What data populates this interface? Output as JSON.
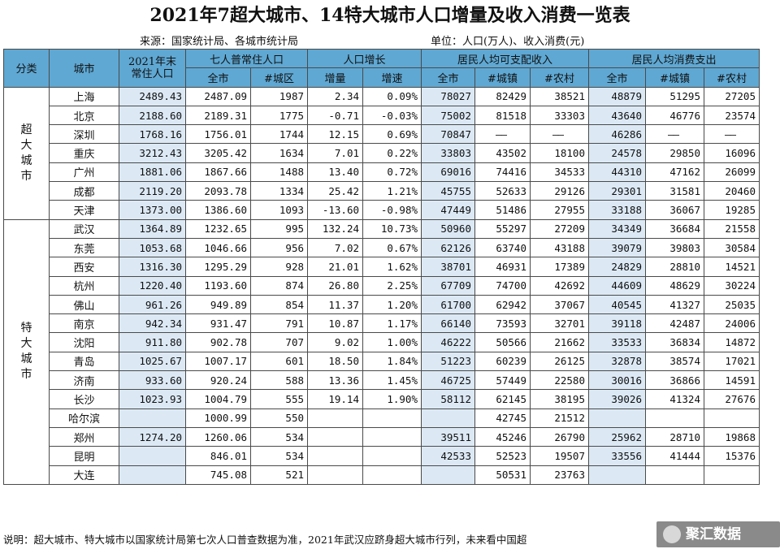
{
  "title": "2021年7超大城市、14特大城市人口增量及收入消费一览表",
  "subtitle": {
    "source": "来源：国家统计局、各城市统计局",
    "unit": "单位：人口(万人)、收入消费(元)"
  },
  "headers": {
    "category": "分类",
    "city": "城市",
    "pop2021_l1": "2021年末",
    "pop2021_l2": "常住人口",
    "census": "七人普常住人口",
    "growth": "人口增长",
    "income": "居民人均可支配收入",
    "consumption": "居民人均消费支出",
    "census_all": "全市",
    "census_urban": "#城区",
    "growth_amount": "增量",
    "growth_rate": "增速",
    "inc_all": "全市",
    "inc_town": "#城镇",
    "inc_rural": "#农村",
    "con_all": "全市",
    "con_town": "#城镇",
    "con_rural": "#农村"
  },
  "categories": {
    "super": "超大城市",
    "mega": "特大城市"
  },
  "rows": [
    [
      "上海",
      "2489.43",
      "2487.09",
      "1987",
      "2.34",
      "0.09%",
      "78027",
      "82429",
      "38521",
      "48879",
      "51295",
      "27205"
    ],
    [
      "北京",
      "2188.60",
      "2189.31",
      "1775",
      "-0.71",
      "-0.03%",
      "75002",
      "81518",
      "33303",
      "43640",
      "46776",
      "23574"
    ],
    [
      "深圳",
      "1768.16",
      "1756.01",
      "1744",
      "12.15",
      "0.69%",
      "70847",
      "——",
      "——",
      "46286",
      "——",
      "——"
    ],
    [
      "重庆",
      "3212.43",
      "3205.42",
      "1634",
      "7.01",
      "0.22%",
      "33803",
      "43502",
      "18100",
      "24578",
      "29850",
      "16096"
    ],
    [
      "广州",
      "1881.06",
      "1867.66",
      "1488",
      "13.40",
      "0.72%",
      "69016",
      "74416",
      "34533",
      "44310",
      "47162",
      "26099"
    ],
    [
      "成都",
      "2119.20",
      "2093.78",
      "1334",
      "25.42",
      "1.21%",
      "45755",
      "52633",
      "29126",
      "29301",
      "31581",
      "20460"
    ],
    [
      "天津",
      "1373.00",
      "1386.60",
      "1093",
      "-13.60",
      "-0.98%",
      "47449",
      "51486",
      "27955",
      "33188",
      "36067",
      "19285"
    ],
    [
      "武汉",
      "1364.89",
      "1232.65",
      "995",
      "132.24",
      "10.73%",
      "50960",
      "55297",
      "27209",
      "34349",
      "36684",
      "21558"
    ],
    [
      "东莞",
      "1053.68",
      "1046.66",
      "956",
      "7.02",
      "0.67%",
      "62126",
      "63740",
      "43188",
      "39079",
      "39803",
      "30584"
    ],
    [
      "西安",
      "1316.30",
      "1295.29",
      "928",
      "21.01",
      "1.62%",
      "38701",
      "46931",
      "17389",
      "24829",
      "28810",
      "14521"
    ],
    [
      "杭州",
      "1220.40",
      "1193.60",
      "874",
      "26.80",
      "2.25%",
      "67709",
      "74700",
      "42692",
      "44609",
      "48629",
      "30224"
    ],
    [
      "佛山",
      "961.26",
      "949.89",
      "854",
      "11.37",
      "1.20%",
      "61700",
      "62942",
      "37067",
      "40545",
      "41327",
      "25035"
    ],
    [
      "南京",
      "942.34",
      "931.47",
      "791",
      "10.87",
      "1.17%",
      "66140",
      "73593",
      "32701",
      "39118",
      "42487",
      "24006"
    ],
    [
      "沈阳",
      "911.80",
      "902.78",
      "707",
      "9.02",
      "1.00%",
      "46222",
      "50566",
      "21662",
      "33533",
      "36834",
      "14872"
    ],
    [
      "青岛",
      "1025.67",
      "1007.17",
      "601",
      "18.50",
      "1.84%",
      "51223",
      "60239",
      "26125",
      "32878",
      "38574",
      "17021"
    ],
    [
      "济南",
      "933.60",
      "920.24",
      "588",
      "13.36",
      "1.45%",
      "46725",
      "57449",
      "22580",
      "30016",
      "36866",
      "14591"
    ],
    [
      "长沙",
      "1023.93",
      "1004.79",
      "555",
      "19.14",
      "1.90%",
      "58112",
      "62145",
      "38195",
      "39026",
      "41324",
      "27676"
    ],
    [
      "哈尔滨",
      "",
      "1000.99",
      "550",
      "",
      "",
      "",
      "42745",
      "21512",
      "",
      "",
      ""
    ],
    [
      "郑州",
      "1274.20",
      "1260.06",
      "534",
      "",
      "",
      "39511",
      "45246",
      "26790",
      "25962",
      "28710",
      "19868"
    ],
    [
      "昆明",
      "",
      "846.01",
      "534",
      "",
      "",
      "42533",
      "52523",
      "19507",
      "33556",
      "41444",
      "15376"
    ],
    [
      "大连",
      "",
      "745.08",
      "521",
      "",
      "",
      "",
      "50531",
      "23763",
      "",
      "",
      ""
    ]
  ],
  "note": "说明：超大城市、特大城市以国家统计局第七次人口普查数据为准，2021年武汉应跻身超大城市行列，未来看中国超",
  "watermark": "聚汇数据",
  "colors": {
    "header": "#5fa8d3",
    "highlight": "#dce9f5"
  }
}
